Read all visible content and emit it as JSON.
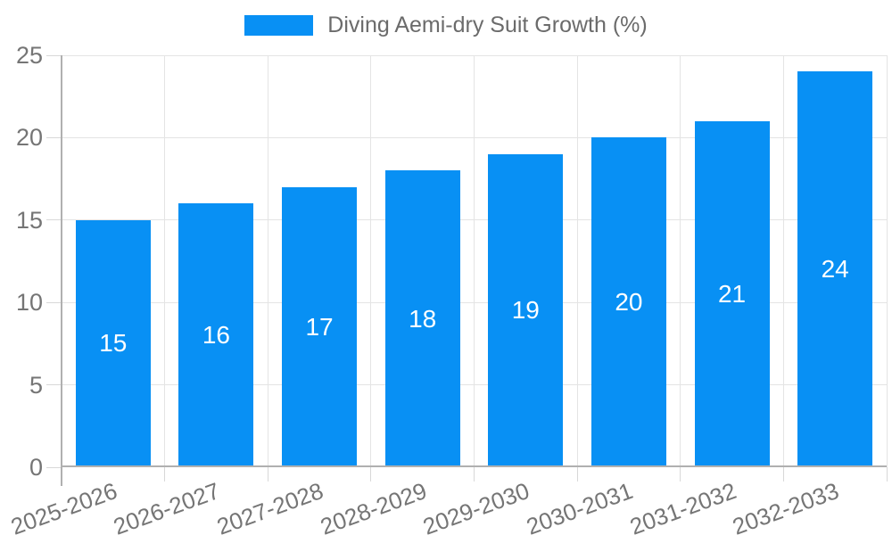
{
  "legend": {
    "label": "Diving Aemi-dry Suit Growth (%)",
    "swatch_color": "#0890f4"
  },
  "chart_data": {
    "type": "bar",
    "title": "Diving Aemi-dry Suit Growth (%)",
    "categories": [
      "2025-2026",
      "2026-2027",
      "2027-2028",
      "2028-2029",
      "2029-2030",
      "2030-2031",
      "2031-2032",
      "2032-2033"
    ],
    "series": [
      {
        "name": "Diving Aemi-dry Suit Growth (%)",
        "values": [
          15,
          16,
          17,
          18,
          19,
          20,
          21,
          24
        ]
      }
    ],
    "bar_value_labels": [
      "15",
      "16",
      "17",
      "18",
      "19",
      "20",
      "21",
      "24"
    ],
    "xlabel": "",
    "ylabel": "",
    "ylim": [
      0,
      25
    ],
    "yticks": [
      0,
      5,
      10,
      15,
      20,
      25
    ],
    "grid": true,
    "legend_position": "top-center",
    "x_label_rotation_deg": -20,
    "colors": {
      "bar": "#0890f4",
      "bar_value_text": "#ffffff",
      "axis_text": "#757575",
      "legend_text": "#6b6b6b",
      "grid_line": "#e4e4e4",
      "axis_line": "#b0b0b0",
      "tick_line": "#d8d8d8",
      "background": "#ffffff"
    }
  }
}
